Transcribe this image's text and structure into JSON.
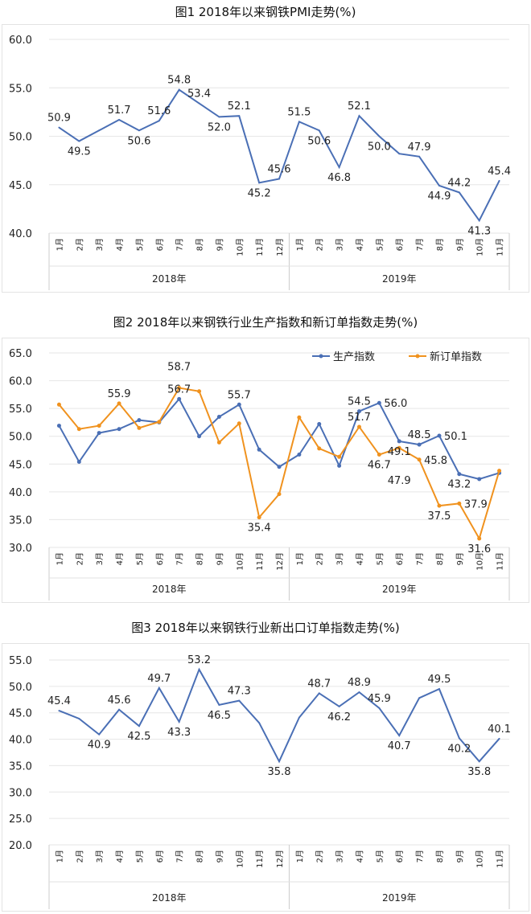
{
  "chart_data": [
    {
      "type": "line",
      "title": "图1 2018年以来钢铁PMI走势(%)",
      "categories": [
        "1月",
        "2月",
        "3月",
        "4月",
        "5月",
        "6月",
        "7月",
        "8月",
        "9月",
        "10月",
        "11月",
        "12月",
        "1月",
        "2月",
        "3月",
        "4月",
        "5月",
        "6月",
        "7月",
        "8月",
        "9月",
        "10月",
        "11月"
      ],
      "groups": [
        {
          "label": "2018年",
          "count": 12
        },
        {
          "label": "2019年",
          "count": 11
        }
      ],
      "ylim": [
        40,
        60
      ],
      "yticks": [
        "40.0",
        "45.0",
        "50.0",
        "55.0",
        "60.0"
      ],
      "grid": true,
      "series": [
        {
          "color": "#4a6fb5",
          "values": [
            50.9,
            49.5,
            50.6,
            51.7,
            50.6,
            51.6,
            54.8,
            53.4,
            52.0,
            52.1,
            45.2,
            45.6,
            51.5,
            50.6,
            46.8,
            52.1,
            50.0,
            48.2,
            47.9,
            44.9,
            44.2,
            41.3,
            45.4
          ],
          "labels": [
            "50.9",
            "49.5",
            null,
            "51.7",
            "50.6",
            "51.6",
            "54.8",
            "53.4",
            "52.0",
            "52.1",
            "45.2",
            "45.6",
            "51.5",
            "50.6",
            "46.8",
            "52.1",
            "50.0",
            null,
            "47.9",
            "44.9",
            "44.2",
            "41.3",
            "45.4"
          ]
        }
      ]
    },
    {
      "type": "line",
      "title": "图2 2018年以来钢铁行业生产指数和新订单指数走势(%)",
      "categories": [
        "1月",
        "2月",
        "3月",
        "4月",
        "5月",
        "6月",
        "7月",
        "8月",
        "9月",
        "10月",
        "11月",
        "12月",
        "1月",
        "2月",
        "3月",
        "4月",
        "5月",
        "6月",
        "7月",
        "8月",
        "9月",
        "10月",
        "11月"
      ],
      "groups": [
        {
          "label": "2018年",
          "count": 12
        },
        {
          "label": "2019年",
          "count": 11
        }
      ],
      "ylim": [
        30,
        65
      ],
      "yticks": [
        "30.0",
        "35.0",
        "40.0",
        "45.0",
        "50.0",
        "55.0",
        "60.0",
        "65.0"
      ],
      "grid": true,
      "legend": "top-right",
      "series": [
        {
          "name": "生产指数",
          "color": "#4a6fb5",
          "markers": true,
          "values": [
            51.9,
            45.4,
            50.6,
            51.3,
            52.9,
            52.5,
            56.7,
            50.0,
            53.5,
            55.7,
            47.6,
            44.5,
            46.7,
            52.2,
            44.7,
            54.5,
            56.0,
            49.1,
            48.5,
            50.1,
            43.2,
            42.3,
            43.4
          ],
          "labels": [
            null,
            null,
            null,
            null,
            null,
            null,
            "56.7",
            null,
            null,
            "55.7",
            null,
            null,
            null,
            null,
            null,
            "54.5",
            "56.0",
            "49.1",
            "48.5",
            "50.1",
            "43.2",
            null,
            null
          ]
        },
        {
          "name": "新订单指数",
          "color": "#f0921e",
          "markers": true,
          "values": [
            55.7,
            51.3,
            51.9,
            55.9,
            51.5,
            52.6,
            58.7,
            58.1,
            48.9,
            52.3,
            35.4,
            39.6,
            53.4,
            47.8,
            46.3,
            51.7,
            46.7,
            47.9,
            45.8,
            37.5,
            37.9,
            31.6,
            43.8
          ],
          "labels": [
            null,
            null,
            null,
            "55.9",
            null,
            null,
            "58.7",
            null,
            null,
            null,
            "35.4",
            null,
            null,
            null,
            null,
            "51.7",
            "46.7",
            "47.9",
            "45.8",
            "37.5",
            "37.9",
            "31.6",
            null
          ]
        }
      ]
    },
    {
      "type": "line",
      "title": "图3 2018年以来钢铁行业新出口订单指数走势(%)",
      "categories": [
        "1月",
        "2月",
        "3月",
        "4月",
        "5月",
        "6月",
        "7月",
        "8月",
        "9月",
        "10月",
        "11月",
        "12月",
        "1月",
        "2月",
        "3月",
        "4月",
        "5月",
        "6月",
        "7月",
        "8月",
        "9月",
        "10月",
        "11月"
      ],
      "groups": [
        {
          "label": "2018年",
          "count": 12
        },
        {
          "label": "2019年",
          "count": 11
        }
      ],
      "ylim": [
        20,
        55
      ],
      "yticks": [
        "20.0",
        "25.0",
        "30.0",
        "35.0",
        "40.0",
        "45.0",
        "50.0",
        "55.0"
      ],
      "grid": true,
      "series": [
        {
          "color": "#4a6fb5",
          "values": [
            45.4,
            43.9,
            40.9,
            45.6,
            42.5,
            49.7,
            43.3,
            53.2,
            46.5,
            47.3,
            43.1,
            35.8,
            44.1,
            48.7,
            46.2,
            48.9,
            45.9,
            40.7,
            47.8,
            49.5,
            40.2,
            35.8,
            40.1
          ],
          "labels": [
            "45.4",
            null,
            "40.9",
            "45.6",
            "42.5",
            "49.7",
            "43.3",
            "53.2",
            "46.5",
            "47.3",
            null,
            "35.8",
            null,
            "48.7",
            "46.2",
            "48.9",
            "45.9",
            "40.7",
            null,
            "49.5",
            "40.2",
            "35.8",
            "40.1"
          ]
        }
      ]
    }
  ]
}
